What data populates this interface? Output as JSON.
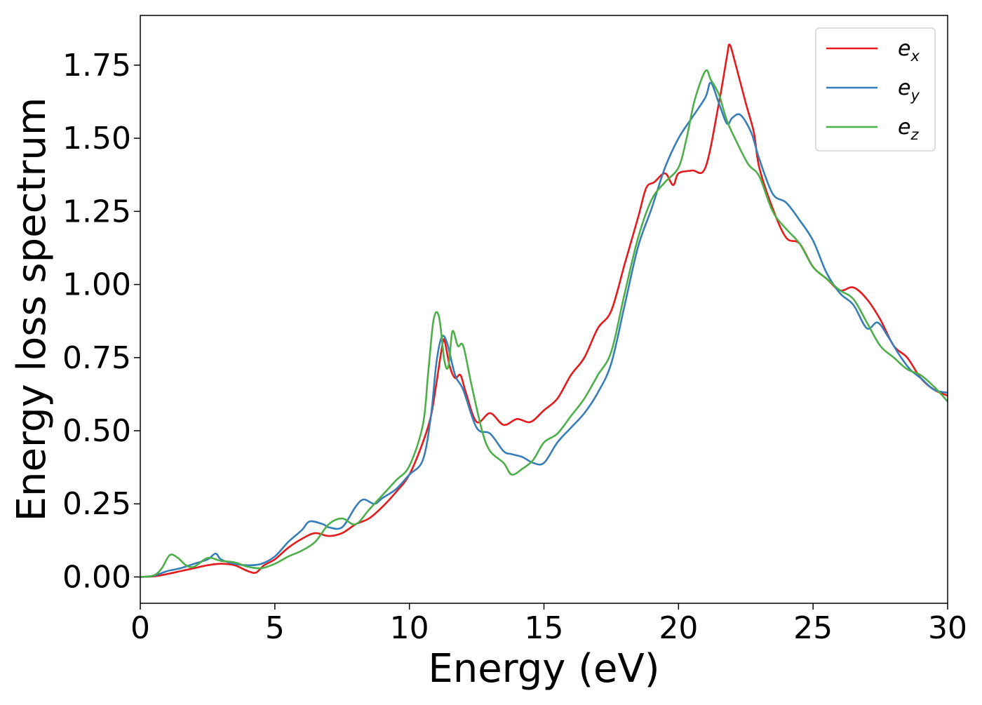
{
  "chart_data": {
    "type": "line",
    "title": "",
    "xlabel": "Energy (eV)",
    "ylabel": "Energy loss spectrum",
    "xlim": [
      0,
      30
    ],
    "ylim": [
      -0.09,
      1.92
    ],
    "xticks": [
      0,
      5,
      10,
      15,
      20,
      25,
      30
    ],
    "xtick_labels": [
      "0",
      "5",
      "10",
      "15",
      "20",
      "25",
      "30"
    ],
    "yticks": [
      0.0,
      0.25,
      0.5,
      0.75,
      1.0,
      1.25,
      1.5,
      1.75
    ],
    "ytick_labels": [
      "0.00",
      "0.25",
      "0.50",
      "0.75",
      "1.00",
      "1.25",
      "1.50",
      "1.75"
    ],
    "grid": false,
    "legend_position": "top-right",
    "series": [
      {
        "name": "e_x",
        "legend_base": "e",
        "legend_sub": "x",
        "color": "#e41a1c",
        "points": [
          [
            0,
            0
          ],
          [
            0.5,
            0.002
          ],
          [
            1,
            0.01
          ],
          [
            1.5,
            0.02
          ],
          [
            2,
            0.03
          ],
          [
            2.5,
            0.04
          ],
          [
            3,
            0.045
          ],
          [
            3.5,
            0.04
          ],
          [
            4,
            0.02
          ],
          [
            4.3,
            0.015
          ],
          [
            4.6,
            0.04
          ],
          [
            5,
            0.06
          ],
          [
            5.5,
            0.1
          ],
          [
            6,
            0.13
          ],
          [
            6.5,
            0.15
          ],
          [
            7,
            0.14
          ],
          [
            7.5,
            0.15
          ],
          [
            8,
            0.18
          ],
          [
            8.5,
            0.2
          ],
          [
            9,
            0.24
          ],
          [
            9.5,
            0.29
          ],
          [
            10,
            0.35
          ],
          [
            10.5,
            0.46
          ],
          [
            10.8,
            0.55
          ],
          [
            11,
            0.66
          ],
          [
            11.2,
            0.78
          ],
          [
            11.3,
            0.81
          ],
          [
            11.5,
            0.72
          ],
          [
            11.7,
            0.68
          ],
          [
            11.9,
            0.69
          ],
          [
            12.1,
            0.63
          ],
          [
            12.5,
            0.53
          ],
          [
            13,
            0.56
          ],
          [
            13.5,
            0.52
          ],
          [
            14,
            0.54
          ],
          [
            14.5,
            0.53
          ],
          [
            15,
            0.57
          ],
          [
            15.5,
            0.61
          ],
          [
            16,
            0.69
          ],
          [
            16.5,
            0.75
          ],
          [
            17,
            0.85
          ],
          [
            17.5,
            0.91
          ],
          [
            18,
            1.07
          ],
          [
            18.5,
            1.23
          ],
          [
            18.8,
            1.33
          ],
          [
            19.1,
            1.35
          ],
          [
            19.5,
            1.38
          ],
          [
            19.8,
            1.34
          ],
          [
            20,
            1.38
          ],
          [
            20.5,
            1.39
          ],
          [
            21,
            1.4
          ],
          [
            21.5,
            1.62
          ],
          [
            21.8,
            1.78
          ],
          [
            21.9,
            1.82
          ],
          [
            22.1,
            1.76
          ],
          [
            22.5,
            1.62
          ],
          [
            22.8,
            1.52
          ],
          [
            23,
            1.4
          ],
          [
            23.5,
            1.26
          ],
          [
            24,
            1.16
          ],
          [
            24.5,
            1.14
          ],
          [
            25,
            1.06
          ],
          [
            25.5,
            1.02
          ],
          [
            26,
            0.98
          ],
          [
            26.5,
            0.99
          ],
          [
            27,
            0.95
          ],
          [
            27.5,
            0.88
          ],
          [
            28,
            0.79
          ],
          [
            28.5,
            0.75
          ],
          [
            29,
            0.68
          ],
          [
            29.5,
            0.64
          ],
          [
            30,
            0.62
          ]
        ]
      },
      {
        "name": "e_y",
        "legend_base": "e",
        "legend_sub": "y",
        "color": "#377eb8",
        "points": [
          [
            0,
            0
          ],
          [
            0.5,
            0.004
          ],
          [
            1,
            0.02
          ],
          [
            1.5,
            0.03
          ],
          [
            2,
            0.045
          ],
          [
            2.5,
            0.06
          ],
          [
            2.8,
            0.08
          ],
          [
            3,
            0.06
          ],
          [
            3.5,
            0.045
          ],
          [
            4,
            0.04
          ],
          [
            4.5,
            0.045
          ],
          [
            5,
            0.07
          ],
          [
            5.5,
            0.12
          ],
          [
            6,
            0.16
          ],
          [
            6.3,
            0.19
          ],
          [
            6.8,
            0.18
          ],
          [
            7,
            0.17
          ],
          [
            7.5,
            0.17
          ],
          [
            8,
            0.24
          ],
          [
            8.3,
            0.265
          ],
          [
            8.7,
            0.25
          ],
          [
            9,
            0.27
          ],
          [
            9.5,
            0.3
          ],
          [
            10,
            0.35
          ],
          [
            10.5,
            0.4
          ],
          [
            10.8,
            0.55
          ],
          [
            11,
            0.73
          ],
          [
            11.2,
            0.82
          ],
          [
            11.4,
            0.8
          ],
          [
            11.7,
            0.69
          ],
          [
            12,
            0.64
          ],
          [
            12.5,
            0.51
          ],
          [
            13,
            0.49
          ],
          [
            13.5,
            0.43
          ],
          [
            13.8,
            0.42
          ],
          [
            14.2,
            0.41
          ],
          [
            14.6,
            0.39
          ],
          [
            15,
            0.39
          ],
          [
            15.5,
            0.46
          ],
          [
            16,
            0.51
          ],
          [
            16.5,
            0.56
          ],
          [
            17,
            0.63
          ],
          [
            17.5,
            0.73
          ],
          [
            18,
            0.93
          ],
          [
            18.5,
            1.13
          ],
          [
            19,
            1.26
          ],
          [
            19.5,
            1.4
          ],
          [
            20,
            1.5
          ],
          [
            20.5,
            1.57
          ],
          [
            21,
            1.64
          ],
          [
            21.2,
            1.69
          ],
          [
            21.5,
            1.62
          ],
          [
            21.8,
            1.55
          ],
          [
            22,
            1.57
          ],
          [
            22.3,
            1.58
          ],
          [
            22.7,
            1.52
          ],
          [
            23,
            1.43
          ],
          [
            23.5,
            1.31
          ],
          [
            24,
            1.28
          ],
          [
            24.5,
            1.22
          ],
          [
            25,
            1.15
          ],
          [
            25.5,
            1.04
          ],
          [
            26,
            0.97
          ],
          [
            26.5,
            0.93
          ],
          [
            27,
            0.85
          ],
          [
            27.4,
            0.87
          ],
          [
            27.8,
            0.82
          ],
          [
            28.2,
            0.76
          ],
          [
            28.6,
            0.71
          ],
          [
            29,
            0.68
          ],
          [
            29.5,
            0.64
          ],
          [
            30,
            0.63
          ]
        ]
      },
      {
        "name": "e_z",
        "legend_base": "e",
        "legend_sub": "z",
        "color": "#4daf4a",
        "points": [
          [
            0,
            0
          ],
          [
            0.5,
            0.005
          ],
          [
            0.8,
            0.03
          ],
          [
            1.1,
            0.075
          ],
          [
            1.4,
            0.065
          ],
          [
            1.7,
            0.04
          ],
          [
            2,
            0.035
          ],
          [
            2.5,
            0.065
          ],
          [
            3,
            0.055
          ],
          [
            3.5,
            0.05
          ],
          [
            4,
            0.035
          ],
          [
            4.5,
            0.03
          ],
          [
            5,
            0.045
          ],
          [
            5.5,
            0.07
          ],
          [
            6,
            0.09
          ],
          [
            6.5,
            0.12
          ],
          [
            7,
            0.18
          ],
          [
            7.5,
            0.2
          ],
          [
            8,
            0.18
          ],
          [
            8.5,
            0.23
          ],
          [
            9,
            0.28
          ],
          [
            9.5,
            0.33
          ],
          [
            10,
            0.38
          ],
          [
            10.5,
            0.52
          ],
          [
            10.7,
            0.7
          ],
          [
            10.9,
            0.88
          ],
          [
            11.1,
            0.89
          ],
          [
            11.3,
            0.74
          ],
          [
            11.45,
            0.72
          ],
          [
            11.6,
            0.84
          ],
          [
            11.8,
            0.79
          ],
          [
            12,
            0.79
          ],
          [
            12.3,
            0.66
          ],
          [
            12.7,
            0.5
          ],
          [
            13,
            0.43
          ],
          [
            13.5,
            0.39
          ],
          [
            13.8,
            0.35
          ],
          [
            14.2,
            0.37
          ],
          [
            14.6,
            0.4
          ],
          [
            15,
            0.46
          ],
          [
            15.5,
            0.49
          ],
          [
            16,
            0.55
          ],
          [
            16.5,
            0.61
          ],
          [
            17,
            0.69
          ],
          [
            17.5,
            0.77
          ],
          [
            18,
            0.97
          ],
          [
            18.5,
            1.16
          ],
          [
            19,
            1.29
          ],
          [
            19.5,
            1.35
          ],
          [
            20,
            1.4
          ],
          [
            20.3,
            1.5
          ],
          [
            20.6,
            1.63
          ],
          [
            21,
            1.73
          ],
          [
            21.2,
            1.7
          ],
          [
            21.5,
            1.65
          ],
          [
            21.8,
            1.56
          ],
          [
            22.2,
            1.48
          ],
          [
            22.6,
            1.41
          ],
          [
            23,
            1.37
          ],
          [
            23.5,
            1.25
          ],
          [
            24,
            1.19
          ],
          [
            24.5,
            1.14
          ],
          [
            25,
            1.06
          ],
          [
            25.5,
            1.02
          ],
          [
            26,
            0.98
          ],
          [
            26.5,
            0.95
          ],
          [
            27,
            0.87
          ],
          [
            27.5,
            0.79
          ],
          [
            28,
            0.75
          ],
          [
            28.5,
            0.71
          ],
          [
            29,
            0.69
          ],
          [
            29.5,
            0.65
          ],
          [
            30,
            0.6
          ]
        ]
      }
    ]
  }
}
